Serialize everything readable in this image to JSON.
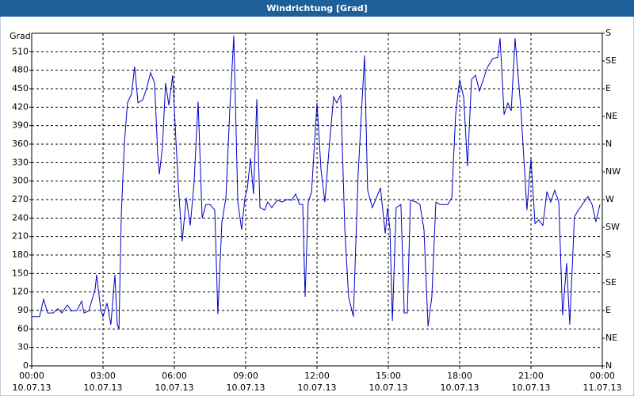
{
  "chart_data": {
    "type": "line",
    "title": "Windrichtung [Grad]",
    "y_label": "Grad",
    "color": "#0000c8",
    "grid": true,
    "x": [
      0,
      0.33,
      0.5,
      0.67,
      0.9,
      1.1,
      1.27,
      1.5,
      1.67,
      1.9,
      2.1,
      2.2,
      2.4,
      2.67,
      2.73,
      2.9,
      3,
      3.17,
      3.33,
      3.5,
      3.6,
      3.67,
      3.77,
      3.9,
      4.03,
      4.2,
      4.33,
      4.47,
      4.67,
      4.83,
      5,
      5.17,
      5.3,
      5.37,
      5.5,
      5.63,
      5.77,
      5.93,
      6.07,
      6.2,
      6.33,
      6.5,
      6.67,
      6.83,
      7,
      7.17,
      7.33,
      7.5,
      7.7,
      7.83,
      8,
      8.17,
      8.33,
      8.5,
      8.67,
      8.83,
      8.97,
      9.07,
      9.2,
      9.33,
      9.47,
      9.6,
      9.8,
      9.93,
      10.1,
      10.33,
      10.53,
      10.73,
      10.93,
      11.1,
      11.27,
      11.4,
      11.5,
      11.63,
      11.77,
      12,
      12.17,
      12.33,
      12.53,
      12.7,
      12.83,
      13,
      13.17,
      13.33,
      13.53,
      13.73,
      14,
      14.13,
      14.33,
      14.5,
      14.67,
      14.87,
      14.97,
      15.07,
      15.17,
      15.33,
      15.53,
      15.67,
      15.8,
      15.93,
      16.17,
      16.33,
      16.5,
      16.67,
      16.83,
      17,
      17.17,
      17.5,
      17.67,
      17.83,
      18,
      18.17,
      18.33,
      18.5,
      18.67,
      18.83,
      19.17,
      19.4,
      19.6,
      19.7,
      19.87,
      20.03,
      20.17,
      20.33,
      20.57,
      20.73,
      20.83,
      21,
      21.17,
      21.33,
      21.5,
      21.67,
      21.83,
      22,
      22.17,
      22.33,
      22.5,
      22.63,
      22.83,
      23,
      23.23,
      23.4,
      23.57,
      23.73,
      23.9
    ],
    "values": [
      80,
      80,
      108,
      86,
      86,
      93,
      86,
      99,
      89,
      90,
      105,
      86,
      89,
      125,
      148,
      93,
      80,
      102,
      67,
      148,
      67,
      60,
      247,
      363,
      427,
      442,
      486,
      427,
      432,
      450,
      476,
      459,
      343,
      311,
      356,
      459,
      423,
      472,
      363,
      273,
      202,
      273,
      228,
      298,
      429,
      240,
      262,
      262,
      253,
      84,
      234,
      273,
      414,
      536,
      266,
      221,
      273,
      288,
      337,
      279,
      433,
      257,
      253,
      266,
      257,
      269,
      266,
      270,
      269,
      279,
      262,
      262,
      112,
      266,
      282,
      427,
      318,
      266,
      363,
      437,
      427,
      440,
      221,
      112,
      80,
      311,
      504,
      285,
      257,
      273,
      289,
      215,
      257,
      221,
      73,
      257,
      262,
      86,
      86,
      269,
      266,
      262,
      221,
      64,
      112,
      266,
      262,
      262,
      273,
      408,
      465,
      436,
      324,
      465,
      472,
      446,
      485,
      499,
      501,
      532,
      408,
      427,
      414,
      532,
      420,
      318,
      253,
      337,
      231,
      237,
      228,
      283,
      266,
      285,
      266,
      82,
      167,
      67,
      243,
      253,
      266,
      275,
      262,
      234,
      262
    ],
    "xlim": [
      0,
      24
    ],
    "xticks": [
      {
        "value": 0,
        "label": "00:00",
        "date": "10.07.13"
      },
      {
        "value": 3,
        "label": "03:00",
        "date": "10.07.13"
      },
      {
        "value": 6,
        "label": "06:00",
        "date": "10.07.13"
      },
      {
        "value": 9,
        "label": "09:00",
        "date": "10.07.13"
      },
      {
        "value": 12,
        "label": "12:00",
        "date": "10.07.13"
      },
      {
        "value": 15,
        "label": "15:00",
        "date": "10.07.13"
      },
      {
        "value": 18,
        "label": "18:00",
        "date": "10.07.13"
      },
      {
        "value": 21,
        "label": "21:00",
        "date": "10.07.13"
      },
      {
        "value": 24,
        "label": "00:00",
        "date": "11.07.13"
      }
    ],
    "ylim": [
      0,
      540
    ],
    "yticks": [
      0,
      30,
      60,
      90,
      120,
      150,
      180,
      210,
      240,
      270,
      300,
      330,
      360,
      390,
      420,
      450,
      480,
      510
    ],
    "y2lim": [
      0,
      540
    ],
    "y2ticks": [
      {
        "value": 0,
        "label": "N"
      },
      {
        "value": 45,
        "label": "NE"
      },
      {
        "value": 90,
        "label": "E"
      },
      {
        "value": 135,
        "label": "SE"
      },
      {
        "value": 180,
        "label": "S"
      },
      {
        "value": 225,
        "label": "SW"
      },
      {
        "value": 270,
        "label": "W"
      },
      {
        "value": 315,
        "label": "NW"
      },
      {
        "value": 360,
        "label": "N"
      },
      {
        "value": 405,
        "label": "NE"
      },
      {
        "value": 450,
        "label": "E"
      },
      {
        "value": 495,
        "label": "SE"
      },
      {
        "value": 540,
        "label": "S"
      }
    ]
  }
}
